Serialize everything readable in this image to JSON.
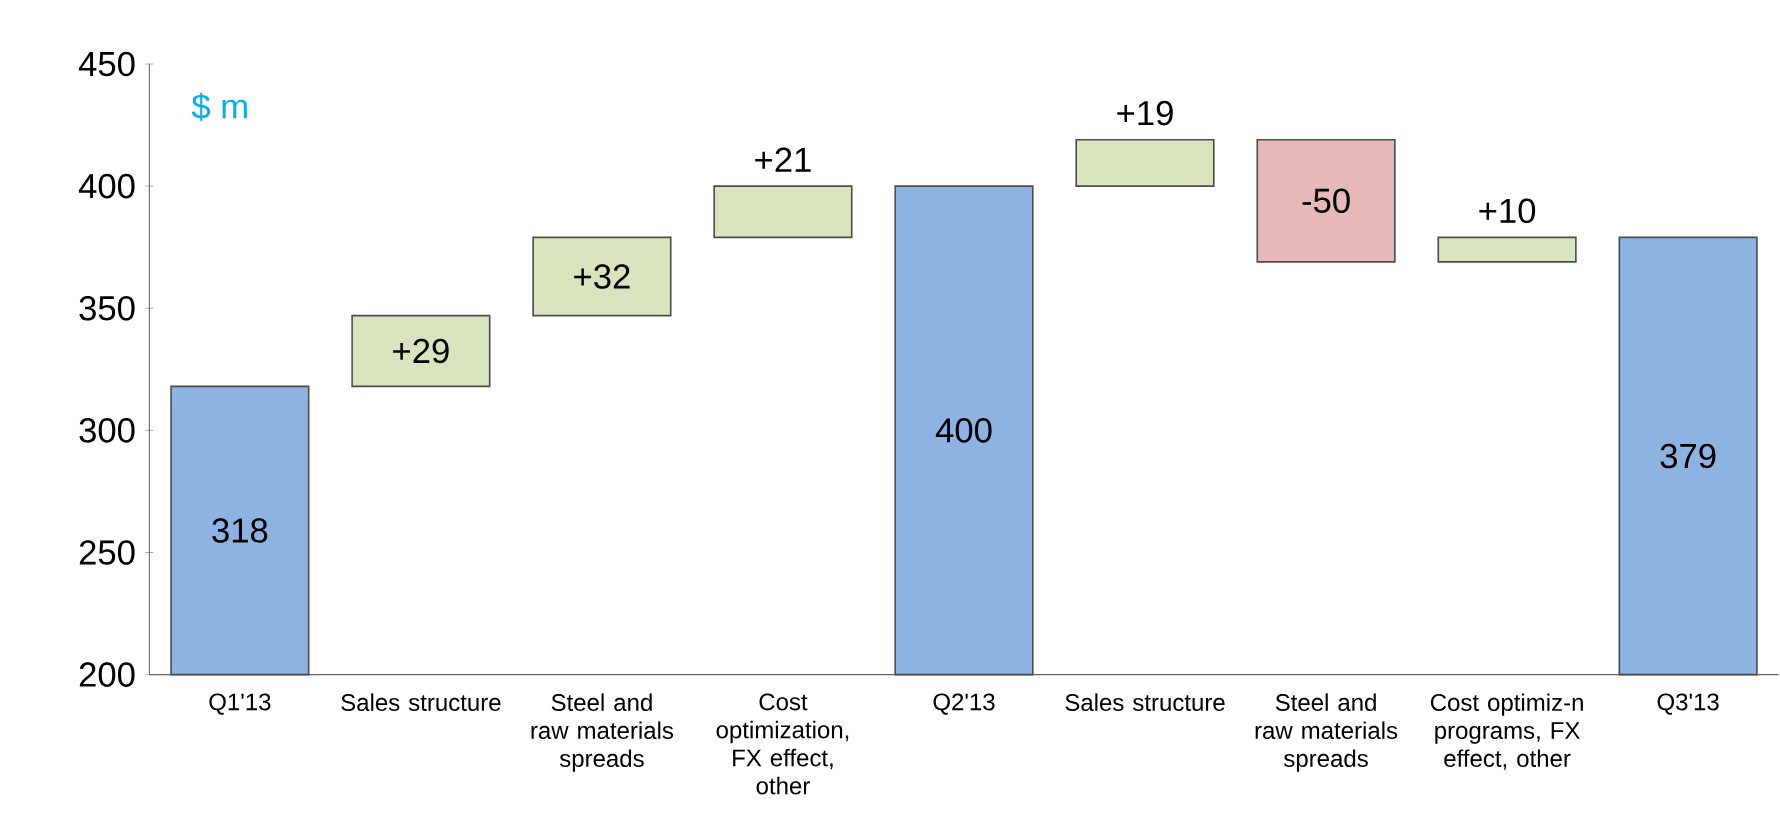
{
  "chart_data": {
    "type": "bar",
    "categories": [
      "Q1'13",
      "Sales structure",
      "Steel and raw materials spreads",
      "Cost optimization, FX effect, other",
      "Q2'13",
      "Sales structure",
      "Steel and raw materials spreads",
      "Cost optimiz-n programs, FX effect, other",
      "Q3'13"
    ],
    "values": [
      318,
      29,
      32,
      21,
      400,
      19,
      -50,
      10,
      379
    ],
    "base": [
      null,
      318,
      347,
      379,
      null,
      400,
      419,
      369,
      null
    ],
    "colors": [
      "#8db3e2",
      "#d7e4bd",
      "#d7e4bd",
      "#d7e4bd",
      "#8db3e2",
      "#d7e4bd",
      "#e6b9b8",
      "#d7e4bd",
      "#8db3e2"
    ],
    "value_labels": [
      "318",
      "+29",
      "+32",
      "+21",
      "400",
      "+19",
      "-50",
      "+10",
      "379"
    ],
    "annotations": [
      "$ m"
    ],
    "ylim": [
      200,
      450
    ],
    "yticks": [
      200,
      250,
      300,
      350,
      400,
      450
    ]
  }
}
